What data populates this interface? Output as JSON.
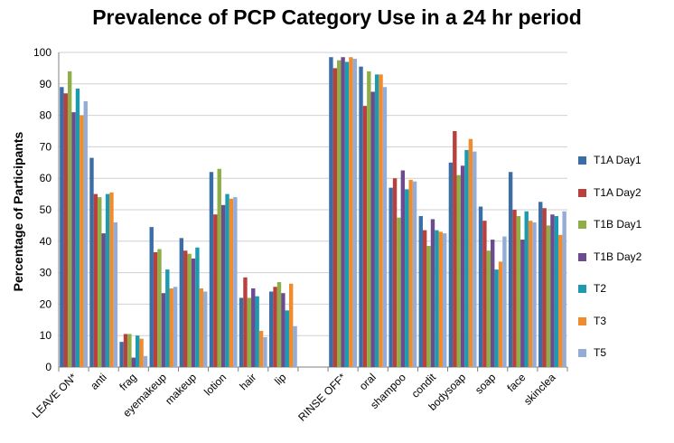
{
  "chart_data": {
    "type": "bar",
    "title": "Prevalence of  PCP Category Use in a 24 hr period",
    "xlabel": "",
    "ylabel": "Percentage of Participants",
    "ylim": [
      0,
      100
    ],
    "yticks": [
      "0",
      "10",
      "20",
      "30",
      "40",
      "50",
      "60",
      "70",
      "80",
      "90",
      "100"
    ],
    "grid": true,
    "legend_position": "right",
    "categories": [
      "LEAVE ON*",
      "anti",
      "frag",
      "eyemakeup",
      "makeup",
      "lotion",
      "hair",
      "lip",
      "",
      "RINSE OFF*",
      "oral",
      "shampoo",
      "condit",
      "bodysoap",
      "soap",
      "face",
      "skinclea"
    ],
    "series": [
      {
        "name": "T1A Day1",
        "color": "#3C6EA6",
        "values": [
          89,
          66.5,
          8,
          44.5,
          41,
          62,
          22,
          24,
          null,
          98.5,
          95.5,
          57,
          48,
          65,
          51,
          62,
          52.5
        ]
      },
      {
        "name": "T1A Day2",
        "color": "#B8403D",
        "values": [
          87,
          55,
          10.5,
          36.5,
          37,
          48.5,
          28.5,
          25.5,
          null,
          95,
          83,
          60,
          43.5,
          75,
          46.5,
          50,
          50.5
        ]
      },
      {
        "name": "T1B Day1",
        "color": "#8FAE46",
        "values": [
          94,
          54,
          10.5,
          37.5,
          36,
          63,
          22,
          27,
          null,
          97.5,
          94,
          47.5,
          38.5,
          61,
          37,
          48,
          45
        ]
      },
      {
        "name": "T1B Day2",
        "color": "#6D4B8F",
        "values": [
          81,
          42.5,
          3,
          23.5,
          34.5,
          51.5,
          25,
          23.5,
          null,
          98.5,
          87.5,
          62.5,
          47,
          64,
          40.5,
          40.5,
          48.5
        ]
      },
      {
        "name": "T2",
        "color": "#1C9BB0",
        "values": [
          88.5,
          55,
          10,
          31,
          38,
          55,
          22.5,
          18,
          null,
          97,
          93,
          56.5,
          43.5,
          69,
          31,
          49.5,
          48
        ]
      },
      {
        "name": "T3",
        "color": "#F08C2E",
        "values": [
          80,
          55.5,
          9,
          25,
          25,
          53.5,
          11.5,
          26.5,
          null,
          98.5,
          93,
          59.5,
          43,
          72.5,
          33.5,
          46.5,
          42
        ]
      },
      {
        "name": "T5",
        "color": "#94ADD6",
        "values": [
          84.5,
          46,
          3.5,
          25.5,
          24,
          54,
          9.5,
          13,
          null,
          98,
          89,
          59,
          42.5,
          68.5,
          41.5,
          46,
          49.5
        ]
      }
    ]
  }
}
